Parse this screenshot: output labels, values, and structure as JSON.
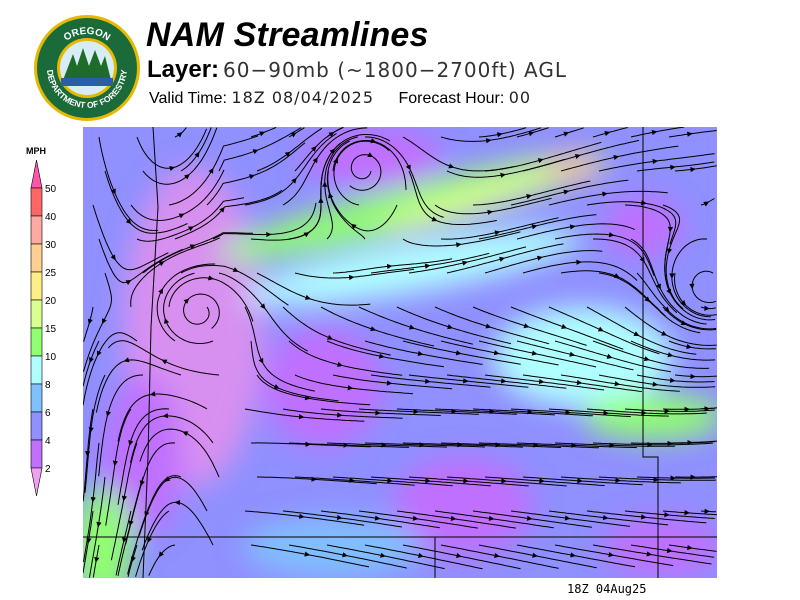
{
  "header": {
    "title": "NAM Streamlines",
    "layer_label": "Layer:",
    "layer_value": "60−90mb (~1800−2700ft) AGL",
    "valid_label": "Valid Time:",
    "valid_value": "18Z 08/04/2025",
    "forecast_label": "Forecast Hour:",
    "forecast_value": "00"
  },
  "logo": {
    "text": "OREGON DEPARTMENT OF FORESTRY",
    "colors": {
      "ring": "#1b6b3a",
      "gold": "#e6b800"
    }
  },
  "legend": {
    "unit": "MPH",
    "ticks": [
      "50",
      "40",
      "30",
      "25",
      "20",
      "15",
      "10",
      "8",
      "6",
      "4",
      "2"
    ],
    "top_color": "#ff55aa",
    "bands": [
      "#ff6666",
      "#ffaaa0",
      "#ffd090",
      "#ffee88",
      "#d8ff90",
      "#90ff70",
      "#b0ffff",
      "#80c0ff",
      "#9090ff",
      "#c070ff"
    ],
    "bottom_color": "#f0a0f0"
  },
  "map": {
    "timestamp": "18Z 04Aug25",
    "streamline_color": "#000000"
  }
}
